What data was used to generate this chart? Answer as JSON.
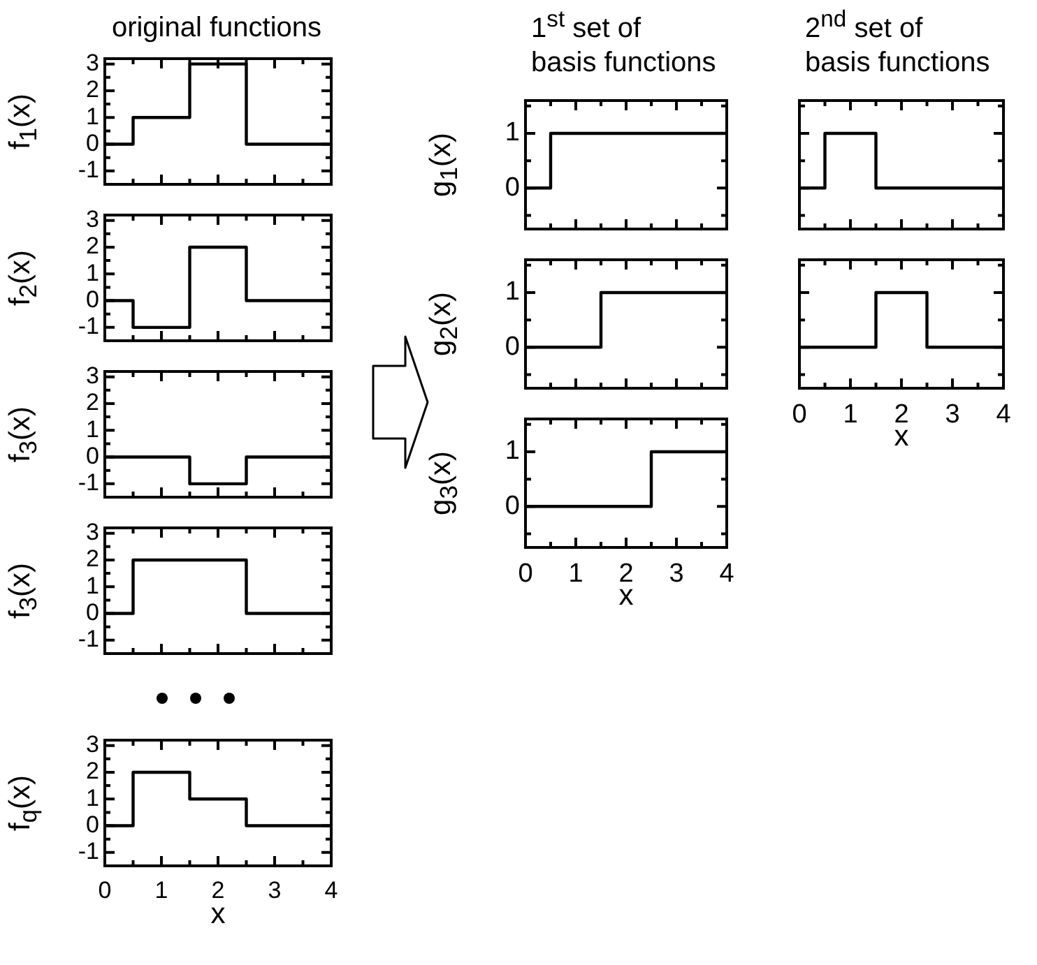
{
  "chart_data": [
    {
      "type": "step",
      "title": "original functions",
      "ylabel": "f$_{1}$(x)",
      "x": [
        0,
        0.5,
        1.5,
        2.5,
        4
      ],
      "values": [
        0,
        1,
        3,
        0,
        0
      ],
      "color": "#000000",
      "xlim": [
        0,
        4
      ],
      "xticks": [
        0,
        {
          "value": 0.5,
          "label": null
        },
        1,
        {
          "value": 1.5,
          "label": null
        },
        2,
        {
          "value": 2.5,
          "label": null
        },
        3,
        {
          "value": 3.5,
          "label": null
        },
        4
      ],
      "ylim": [
        -1.5,
        3.2
      ],
      "yticks": [
        -1,
        {
          "value": -0.5,
          "label": null
        },
        0,
        {
          "value": 0.5,
          "label": null
        },
        1,
        {
          "value": 1.5,
          "label": null
        },
        2,
        {
          "value": 2.5,
          "label": null
        },
        3
      ],
      "tick_labels": "y"
    },
    {
      "type": "step",
      "ylabel": "f$_{2}$(x)",
      "x": [
        0,
        0.5,
        1.5,
        2.5,
        4
      ],
      "values": [
        0,
        -1,
        2,
        0,
        0
      ],
      "color": "#000000",
      "xlim": [
        0,
        4
      ],
      "xticks": [
        0,
        {
          "value": 0.5,
          "label": null
        },
        1,
        {
          "value": 1.5,
          "label": null
        },
        2,
        {
          "value": 2.5,
          "label": null
        },
        3,
        {
          "value": 3.5,
          "label": null
        },
        4
      ],
      "ylim": [
        -1.5,
        3.2
      ],
      "yticks": [
        -1,
        {
          "value": -0.5,
          "label": null
        },
        0,
        {
          "value": 0.5,
          "label": null
        },
        1,
        {
          "value": 1.5,
          "label": null
        },
        2,
        {
          "value": 2.5,
          "label": null
        },
        3
      ],
      "tick_labels": "y"
    },
    {
      "type": "step",
      "ylabel": "f$_{3}$(x)",
      "x": [
        0,
        1.5,
        2.5,
        4
      ],
      "values": [
        0,
        -1,
        0,
        0
      ],
      "color": "#000000",
      "xlim": [
        0,
        4
      ],
      "xticks": [
        0,
        {
          "value": 0.5,
          "label": null
        },
        1,
        {
          "value": 1.5,
          "label": null
        },
        2,
        {
          "value": 2.5,
          "label": null
        },
        3,
        {
          "value": 3.5,
          "label": null
        },
        4
      ],
      "ylim": [
        -1.5,
        3.2
      ],
      "yticks": [
        -1,
        {
          "value": -0.5,
          "label": null
        },
        0,
        {
          "value": 0.5,
          "label": null
        },
        1,
        {
          "value": 1.5,
          "label": null
        },
        2,
        {
          "value": 2.5,
          "label": null
        },
        3
      ],
      "tick_labels": "y"
    },
    {
      "type": "step",
      "ylabel": "f$_{3}$(x)",
      "x": [
        0,
        0.5,
        2.5,
        4
      ],
      "values": [
        0,
        2,
        0,
        0
      ],
      "color": "#000000",
      "xlim": [
        0,
        4
      ],
      "xticks": [
        0,
        {
          "value": 0.5,
          "label": null
        },
        1,
        {
          "value": 1.5,
          "label": null
        },
        2,
        {
          "value": 2.5,
          "label": null
        },
        3,
        {
          "value": 3.5,
          "label": null
        },
        4
      ],
      "ylim": [
        -1.5,
        3.2
      ],
      "yticks": [
        -1,
        {
          "value": -0.5,
          "label": null
        },
        0,
        {
          "value": 0.5,
          "label": null
        },
        1,
        {
          "value": 1.5,
          "label": null
        },
        2,
        {
          "value": 2.5,
          "label": null
        },
        3
      ],
      "tick_labels": "y"
    },
    {
      "type": "step",
      "ylabel": "f$_{q}$(x)",
      "xlabel": "x",
      "x": [
        0,
        0.5,
        1.5,
        2.5,
        4
      ],
      "values": [
        0,
        2,
        1,
        0,
        0
      ],
      "color": "#000000",
      "xlim": [
        0,
        4
      ],
      "xticks": [
        0,
        {
          "value": 0.5,
          "label": null
        },
        1,
        {
          "value": 1.5,
          "label": null
        },
        2,
        {
          "value": 2.5,
          "label": null
        },
        3,
        {
          "value": 3.5,
          "label": null
        },
        4
      ],
      "ylim": [
        -1.5,
        3.2
      ],
      "yticks": [
        -1,
        {
          "value": -0.5,
          "label": null
        },
        0,
        {
          "value": 0.5,
          "label": null
        },
        1,
        {
          "value": 1.5,
          "label": null
        },
        2,
        {
          "value": 2.5,
          "label": null
        },
        3
      ]
    },
    {
      "type": "step",
      "title": "1$^{st}$ set of\nbasis functions",
      "ylabel": "g$_{1}$(x)",
      "x": [
        0,
        0.5,
        4
      ],
      "values": [
        0,
        1,
        1
      ],
      "color": "#000000",
      "xlim": [
        0,
        4
      ],
      "xticks": [
        0,
        {
          "value": 0.5,
          "label": null
        },
        1,
        {
          "value": 1.5,
          "label": null
        },
        2,
        {
          "value": 2.5,
          "label": null
        },
        3,
        {
          "value": 3.5,
          "label": null
        },
        4
      ],
      "ylim": [
        -0.75,
        1.6
      ],
      "yticks": [
        {
          "value": -0.5,
          "label": null
        },
        0,
        {
          "value": 0.5,
          "label": null
        },
        1,
        {
          "value": 1.5,
          "label": null
        }
      ],
      "tick_labels": "y"
    },
    {
      "type": "step",
      "ylabel": "g$_{2}$(x)",
      "x": [
        0,
        1.5,
        4
      ],
      "values": [
        0,
        1,
        1
      ],
      "color": "#000000",
      "xlim": [
        0,
        4
      ],
      "xticks": [
        0,
        {
          "value": 0.5,
          "label": null
        },
        1,
        {
          "value": 1.5,
          "label": null
        },
        2,
        {
          "value": 2.5,
          "label": null
        },
        3,
        {
          "value": 3.5,
          "label": null
        },
        4
      ],
      "ylim": [
        -0.75,
        1.6
      ],
      "yticks": [
        {
          "value": -0.5,
          "label": null
        },
        0,
        {
          "value": 0.5,
          "label": null
        },
        1,
        {
          "value": 1.5,
          "label": null
        }
      ],
      "tick_labels": "y"
    },
    {
      "type": "step",
      "ylabel": "g$_{3}$(x)",
      "xlabel": "x",
      "x": [
        0,
        2.5,
        4
      ],
      "values": [
        0,
        1,
        1
      ],
      "color": "#000000",
      "xlim": [
        0,
        4
      ],
      "xticks": [
        0,
        {
          "value": 0.5,
          "label": null
        },
        1,
        {
          "value": 1.5,
          "label": null
        },
        2,
        {
          "value": 2.5,
          "label": null
        },
        3,
        {
          "value": 3.5,
          "label": null
        },
        4
      ],
      "ylim": [
        -0.75,
        1.6
      ],
      "yticks": [
        {
          "value": -0.5,
          "label": null
        },
        0,
        {
          "value": 0.5,
          "label": null
        },
        1,
        {
          "value": 1.5,
          "label": null
        }
      ]
    },
    {
      "type": "step",
      "title": "2$^{nd}$ set of\nbasis functions",
      "x": [
        0,
        0.5,
        1.5,
        4
      ],
      "values": [
        0,
        1,
        0,
        0
      ],
      "color": "#000000",
      "xlim": [
        0,
        4
      ],
      "xticks": [
        0,
        {
          "value": 0.5,
          "label": null
        },
        1,
        {
          "value": 1.5,
          "label": null
        },
        2,
        {
          "value": 2.5,
          "label": null
        },
        3,
        {
          "value": 3.5,
          "label": null
        },
        4
      ],
      "ylim": [
        -0.75,
        1.6
      ],
      "yticks": [
        {
          "value": -0.5,
          "label": null
        },
        0,
        {
          "value": 0.5,
          "label": null
        },
        1,
        {
          "value": 1.5,
          "label": null
        }
      ],
      "tick_labels": false
    },
    {
      "type": "step",
      "xlabel": "x",
      "x": [
        0,
        1.5,
        2.5,
        4
      ],
      "values": [
        0,
        1,
        0,
        0
      ],
      "color": "#000000",
      "xlim": [
        0,
        4
      ],
      "xticks": [
        0,
        {
          "value": 0.5,
          "label": null
        },
        1,
        {
          "value": 1.5,
          "label": null
        },
        2,
        {
          "value": 2.5,
          "label": null
        },
        3,
        {
          "value": 3.5,
          "label": null
        },
        4
      ],
      "ylim": [
        -0.75,
        1.6
      ],
      "yticks": [
        {
          "value": -0.5,
          "label": null
        },
        0,
        {
          "value": 0.5,
          "label": null
        },
        1,
        {
          "value": 1.5,
          "label": null
        }
      ],
      "tick_labels": "x"
    }
  ]
}
